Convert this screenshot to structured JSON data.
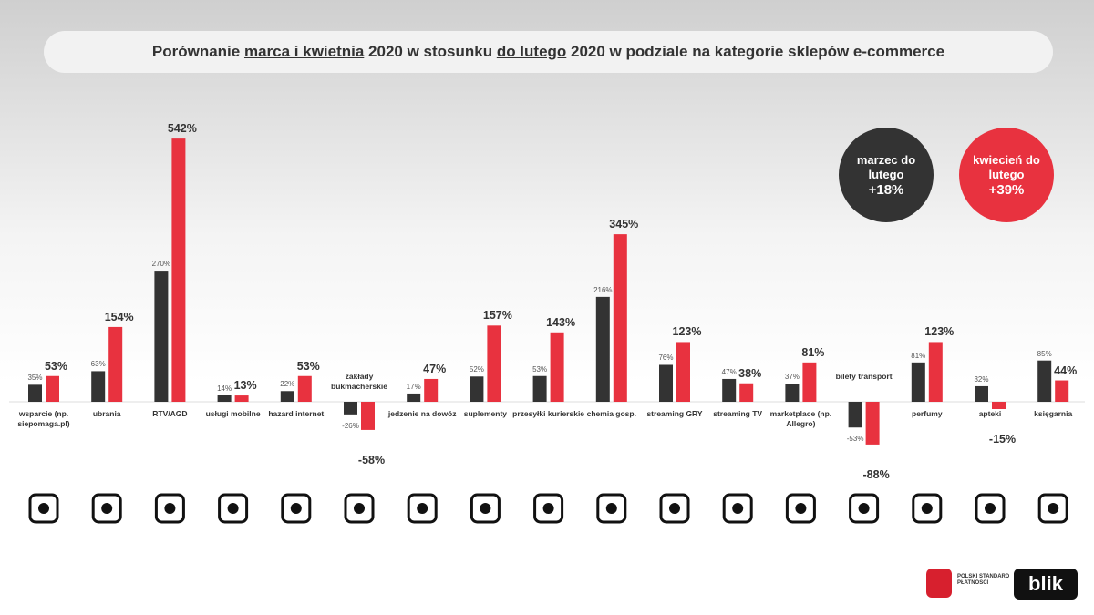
{
  "chart_data": {
    "type": "bar",
    "title": [
      {
        "text": "Porównanie ",
        "underline": false
      },
      {
        "text": "marca i kwietnia",
        "underline": true
      },
      {
        "text": " 2020 w stosunku ",
        "underline": false
      },
      {
        "text": "do lutego",
        "underline": true
      },
      {
        "text": " 2020 w podziale na kategorie sklepów e-commerce",
        "underline": false
      }
    ],
    "categories": [
      "wsparcie (np. siepomaga.pl)",
      "ubrania",
      "RTV/AGD",
      "usługi mobilne",
      "hazard internet",
      "zakłady bukmacherskie",
      "jedzenie na dowóz",
      "suplementy",
      "przesyłki kurierskie",
      "chemia gosp.",
      "streaming GRY",
      "streaming TV",
      "marketplace (np. Allegro)",
      "bilety transport",
      "perfumy",
      "apteki",
      "księgarnia"
    ],
    "series": [
      {
        "name": "marzec do lutego",
        "color": "#333333",
        "summary": {
          "value": 18,
          "label": "+18%"
        },
        "values": [
          35,
          63,
          270,
          14,
          22,
          -26,
          17,
          52,
          53,
          216,
          76,
          47,
          37,
          -53,
          81,
          32,
          85
        ],
        "value_labels": [
          "35%",
          "63%",
          "270%",
          "14%",
          "22%",
          "-26%",
          "17%",
          "52%",
          "53%",
          "216%",
          "76%",
          "47%",
          "37%",
          "-53%",
          "81%",
          "32%",
          "85%"
        ]
      },
      {
        "name": "kwiecień do lutego",
        "color": "#e8323f",
        "summary": {
          "value": 39,
          "label": "+39%"
        },
        "values": [
          53,
          154,
          542,
          13,
          53,
          -58,
          47,
          157,
          143,
          345,
          123,
          38,
          81,
          -88,
          123,
          -15,
          44
        ],
        "value_labels": [
          "53%",
          "154%",
          "542%",
          "13%",
          "53%",
          "-58%",
          "47%",
          "157%",
          "143%",
          "345%",
          "123%",
          "38%",
          "81%",
          "-88%",
          "123%",
          "-15%",
          "44%"
        ]
      }
    ]
  },
  "logos": {
    "psp": "POLSKI STANDARD PŁATNOŚCI",
    "blik": "blik"
  }
}
